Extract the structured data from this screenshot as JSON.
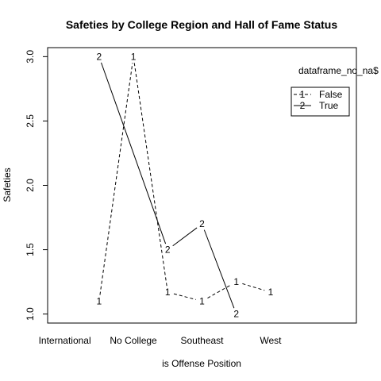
{
  "chart_data": {
    "type": "line",
    "title": "Safeties by College Region and Hall of Fame Status",
    "xlabel": "is Offense Position",
    "ylabel": "Safeties",
    "categories": [
      "International",
      "No College",
      "Southeast",
      "West"
    ],
    "x_positions": [
      1,
      2,
      3,
      4,
      5,
      6,
      7,
      8
    ],
    "xlim": [
      0.5,
      9.5
    ],
    "ylim": [
      0.93,
      3.07
    ],
    "yticks": [
      "1.0",
      "1.5",
      "2.0",
      "2.5",
      "3.0"
    ],
    "category_tick_x": [
      1,
      3,
      5,
      7
    ],
    "series": [
      {
        "name": "False",
        "symbol": "1",
        "style": "dashed",
        "x": [
          2,
          3,
          4,
          5,
          6,
          7
        ],
        "y": [
          1.1,
          3.0,
          1.17,
          1.1,
          1.25,
          1.17
        ]
      },
      {
        "name": "True",
        "symbol": "2",
        "style": "solid",
        "x": [
          2,
          4,
          5,
          6
        ],
        "y": [
          3.0,
          1.5,
          1.7,
          1.0
        ]
      }
    ],
    "legend": {
      "title": "dataframe_no_na$",
      "entries": [
        {
          "symbol": "1",
          "label": "False",
          "style": "dashed"
        },
        {
          "symbol": "2",
          "label": "True",
          "style": "solid"
        }
      ],
      "position": "top-right"
    },
    "grid": false
  }
}
